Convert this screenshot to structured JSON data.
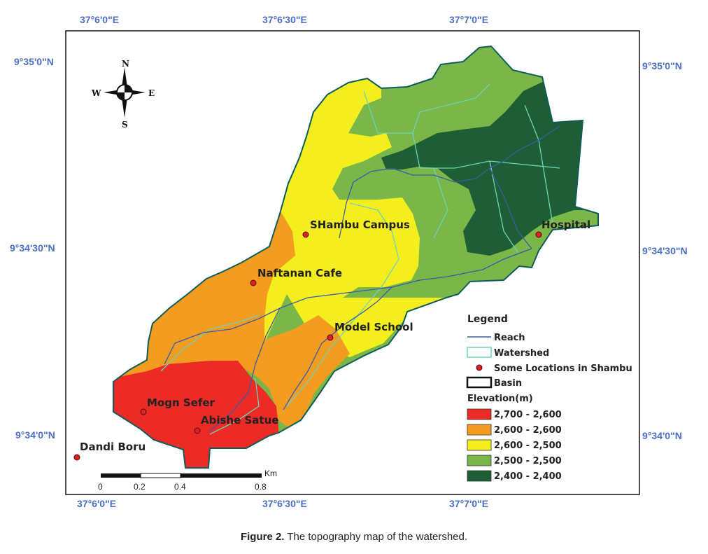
{
  "map": {
    "lon_ticks": [
      "37°6'0\"E",
      "37°6'30\"E",
      "37°7'0\"E"
    ],
    "lat_ticks": [
      "9°35'0\"N",
      "9°34'30\"N",
      "9°34'0\"N"
    ],
    "locations": [
      {
        "name": "SHambu Campus"
      },
      {
        "name": "Naftanan Cafe"
      },
      {
        "name": "Model School"
      },
      {
        "name": "Hospital"
      },
      {
        "name": "Mogn Sefer"
      },
      {
        "name": "Abishe Satue"
      },
      {
        "name": "Dandi Boru"
      }
    ],
    "north_arrow": {
      "n": "N",
      "s": "S",
      "e": "E",
      "w": "W"
    },
    "scale_bar": {
      "unit": "Km",
      "labels": [
        "0",
        "0.2",
        "0.4",
        "0.8"
      ]
    },
    "legend": {
      "title": "Legend",
      "reach": "Reach",
      "watershed": "Watershed",
      "locations": "Some Locations in Shambu",
      "basin": "Basin",
      "elevation_title": "Elevation(m)",
      "classes": [
        {
          "label": "2,700 - 2,600",
          "color": "#ec2a26"
        },
        {
          "label": "2,600 - 2,600",
          "color": "#f39c1f"
        },
        {
          "label": "2,600 - 2,500",
          "color": "#f5ee1f"
        },
        {
          "label": "2,500 - 2,500",
          "color": "#7ab648"
        },
        {
          "label": "2,400 - 2,400",
          "color": "#1e5e34"
        }
      ],
      "reach_color": "#3b5ba8",
      "watershed_color": "#6fd2b8",
      "location_color": "#e02020"
    }
  },
  "caption": {
    "label": "Figure 2.",
    "text": " The topography map of the watershed."
  }
}
